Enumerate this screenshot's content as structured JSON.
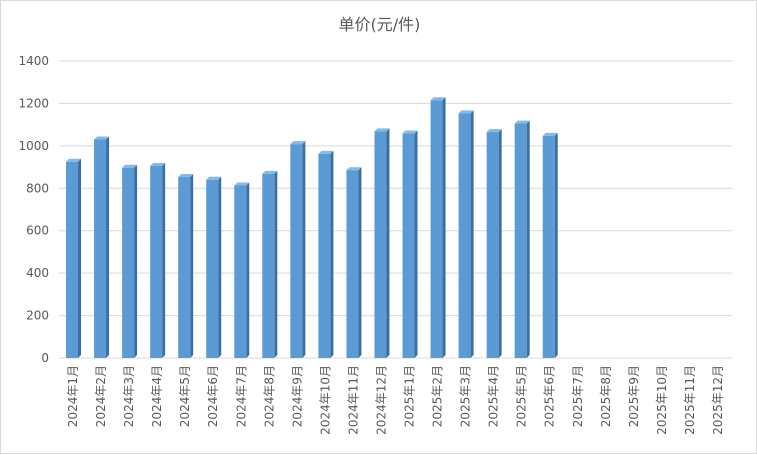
{
  "chart_data": {
    "type": "bar",
    "title": "单价(元/件)",
    "categories": [
      "2024年1月",
      "2024年2月",
      "2024年3月",
      "2024年4月",
      "2024年5月",
      "2024年6月",
      "2024年7月",
      "2024年8月",
      "2024年9月",
      "2024年10月",
      "2024年11月",
      "2024年12月",
      "2025年1月",
      "2025年2月",
      "2025年3月",
      "2025年4月",
      "2025年5月",
      "2025年6月",
      "2025年7月",
      "2025年8月",
      "2025年9月",
      "2025年10月",
      "2025年11月",
      "2025年12月"
    ],
    "values": [
      925,
      1030,
      897,
      905,
      853,
      840,
      813,
      868,
      1008,
      962,
      885,
      1068,
      1058,
      1215,
      1153,
      1065,
      1105,
      1047,
      null,
      null,
      null,
      null,
      null,
      null
    ],
    "ylim": [
      0,
      1400
    ],
    "yticks": [
      0,
      200,
      400,
      600,
      800,
      1000,
      1200,
      1400
    ],
    "grid": true,
    "legend": "none",
    "colors": {
      "bar_front": "#5b9bd5",
      "bar_side": "#3b6f9f",
      "bar_top": "#8bb7e0",
      "grid": "#d9d9d9",
      "text": "#595959"
    }
  }
}
